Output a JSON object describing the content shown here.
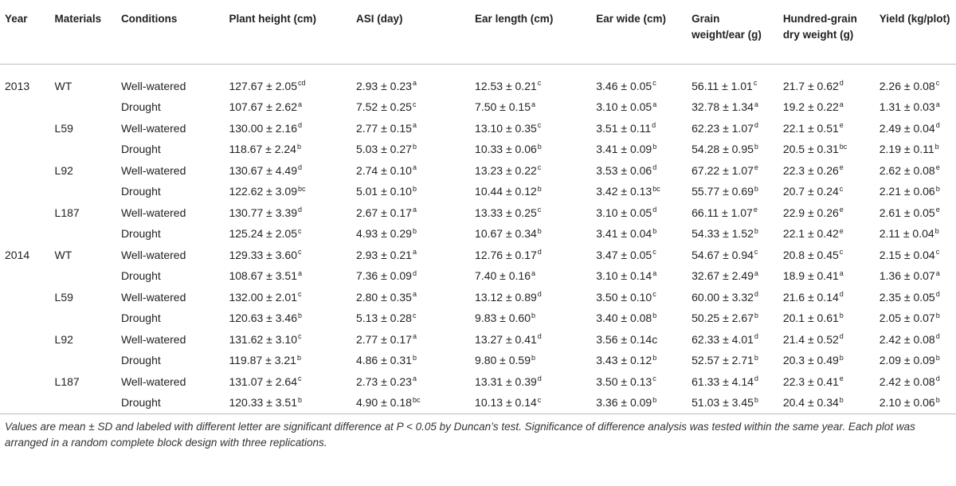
{
  "headers": [
    "Year",
    "Materials",
    "Conditions",
    "Plant height (cm)",
    "ASI (day)",
    "Ear length (cm)",
    "Ear wide (cm)",
    "Grain weight/ear (g)",
    "Hundred-grain dry weight (g)",
    "Yield (kg/plot)"
  ],
  "rows": [
    {
      "year": "2013",
      "material": "WT",
      "condition": "Well-watered",
      "cells": [
        [
          "127.67 ± 2.05",
          "cd"
        ],
        [
          "2.93 ± 0.23",
          "a"
        ],
        [
          "12.53 ± 0.21",
          "c"
        ],
        [
          "3.46 ± 0.05",
          "c"
        ],
        [
          "56.11 ± 1.01",
          "c"
        ],
        [
          "21.7 ± 0.62",
          "d"
        ],
        [
          "2.26 ± 0.08",
          "c"
        ]
      ]
    },
    {
      "year": "",
      "material": "",
      "condition": "Drought",
      "cells": [
        [
          "107.67 ± 2.62",
          "a"
        ],
        [
          "7.52 ± 0.25",
          "c"
        ],
        [
          "7.50 ± 0.15",
          "a"
        ],
        [
          "3.10 ± 0.05",
          "a"
        ],
        [
          "32.78 ± 1.34",
          "a"
        ],
        [
          "19.2 ± 0.22",
          "a"
        ],
        [
          "1.31 ± 0.03",
          "a"
        ]
      ]
    },
    {
      "year": "",
      "material": "L59",
      "condition": "Well-watered",
      "cells": [
        [
          "130.00 ± 2.16",
          "d"
        ],
        [
          "2.77 ± 0.15",
          "a"
        ],
        [
          "13.10 ± 0.35",
          "c"
        ],
        [
          "3.51 ± 0.11",
          "d"
        ],
        [
          "62.23 ± 1.07",
          "d"
        ],
        [
          "22.1 ± 0.51",
          "e"
        ],
        [
          "2.49 ± 0.04",
          "d"
        ]
      ]
    },
    {
      "year": "",
      "material": "",
      "condition": "Drought",
      "cells": [
        [
          "118.67 ± 2.24",
          "b"
        ],
        [
          "5.03 ± 0.27",
          "b"
        ],
        [
          "10.33 ± 0.06",
          "b"
        ],
        [
          "3.41 ± 0.09",
          "b"
        ],
        [
          "54.28 ± 0.95",
          "b"
        ],
        [
          "20.5 ± 0.31",
          "bc"
        ],
        [
          "2.19 ± 0.11",
          "b"
        ]
      ]
    },
    {
      "year": "",
      "material": "L92",
      "condition": "Well-watered",
      "cells": [
        [
          "130.67 ± 4.49",
          "d"
        ],
        [
          "2.74 ± 0.10",
          "a"
        ],
        [
          "13.23 ± 0.22",
          "c"
        ],
        [
          "3.53 ± 0.06",
          "d"
        ],
        [
          "67.22 ± 1.07",
          "e"
        ],
        [
          "22.3 ± 0.26",
          "e"
        ],
        [
          "2.62 ± 0.08",
          "e"
        ]
      ]
    },
    {
      "year": "",
      "material": "",
      "condition": "Drought",
      "cells": [
        [
          "122.62 ± 3.09",
          "bc"
        ],
        [
          "5.01 ± 0.10",
          "b"
        ],
        [
          "10.44 ± 0.12",
          "b"
        ],
        [
          "3.42 ± 0.13",
          "bc"
        ],
        [
          "55.77 ± 0.69",
          "b"
        ],
        [
          "20.7 ± 0.24",
          "c"
        ],
        [
          "2.21 ± 0.06",
          "b"
        ]
      ]
    },
    {
      "year": "",
      "material": "L187",
      "condition": "Well-watered",
      "cells": [
        [
          "130.77 ± 3.39",
          "d"
        ],
        [
          "2.67 ± 0.17",
          "a"
        ],
        [
          "13.33 ± 0.25",
          "c"
        ],
        [
          "3.10 ± 0.05",
          "d"
        ],
        [
          "66.11 ± 1.07",
          "e"
        ],
        [
          "22.9 ± 0.26",
          "e"
        ],
        [
          "2.61 ± 0.05",
          "e"
        ]
      ]
    },
    {
      "year": "",
      "material": "",
      "condition": "Drought",
      "cells": [
        [
          "125.24 ± 2.05",
          "c"
        ],
        [
          "4.93 ± 0.29",
          "b"
        ],
        [
          "10.67 ± 0.34",
          "b"
        ],
        [
          "3.41 ± 0.04",
          "b"
        ],
        [
          "54.33 ± 1.52",
          "b"
        ],
        [
          "22.1 ± 0.42",
          "e"
        ],
        [
          "2.11 ± 0.04",
          "b"
        ]
      ]
    },
    {
      "year": "2014",
      "material": "WT",
      "condition": "Well-watered",
      "cells": [
        [
          "129.33 ± 3.60",
          "c"
        ],
        [
          "2.93 ± 0.21",
          "a"
        ],
        [
          "12.76 ± 0.17",
          "d"
        ],
        [
          "3.47 ± 0.05",
          "c"
        ],
        [
          "54.67 ± 0.94",
          "c"
        ],
        [
          "20.8 ± 0.45",
          "c"
        ],
        [
          "2.15 ± 0.04",
          "c"
        ]
      ]
    },
    {
      "year": "",
      "material": "",
      "condition": "Drought",
      "cells": [
        [
          "108.67 ± 3.51",
          "a"
        ],
        [
          "7.36 ± 0.09",
          "d"
        ],
        [
          "7.40 ± 0.16",
          "a"
        ],
        [
          "3.10 ± 0.14",
          "a"
        ],
        [
          "32.67 ± 2.49",
          "a"
        ],
        [
          "18.9 ± 0.41",
          "a"
        ],
        [
          "1.36 ± 0.07",
          "a"
        ]
      ]
    },
    {
      "year": "",
      "material": "L59",
      "condition": "Well-watered",
      "cells": [
        [
          "132.00 ± 2.01",
          "c"
        ],
        [
          "2.80 ± 0.35",
          "a"
        ],
        [
          "13.12 ± 0.89",
          "d"
        ],
        [
          "3.50 ± 0.10",
          "c"
        ],
        [
          "60.00 ± 3.32",
          "d"
        ],
        [
          "21.6 ± 0.14",
          "d"
        ],
        [
          "2.35 ± 0.05",
          "d"
        ]
      ]
    },
    {
      "year": "",
      "material": "",
      "condition": "Drought",
      "cells": [
        [
          "120.63 ± 3.46",
          "b"
        ],
        [
          "5.13 ± 0.28",
          "c"
        ],
        [
          "9.83 ± 0.60",
          "b"
        ],
        [
          "3.40 ± 0.08",
          "b"
        ],
        [
          "50.25 ± 2.67",
          "b"
        ],
        [
          "20.1 ± 0.61",
          "b"
        ],
        [
          "2.05 ± 0.07",
          "b"
        ]
      ]
    },
    {
      "year": "",
      "material": "L92",
      "condition": "Well-watered",
      "cells": [
        [
          "131.62 ± 3.10",
          "c"
        ],
        [
          "2.77 ± 0.17",
          "a"
        ],
        [
          "13.27 ± 0.41",
          "d"
        ],
        [
          "3.56 ± 0.14c",
          ""
        ],
        [
          "62.33 ± 4.01",
          "d"
        ],
        [
          "21.4 ± 0.52",
          "d"
        ],
        [
          "2.42 ± 0.08",
          "d"
        ]
      ]
    },
    {
      "year": "",
      "material": "",
      "condition": "Drought",
      "cells": [
        [
          "119.87 ± 3.21",
          "b"
        ],
        [
          "4.86 ± 0.31",
          "b"
        ],
        [
          "9.80 ± 0.59",
          "b"
        ],
        [
          "3.43 ± 0.12",
          "b"
        ],
        [
          "52.57 ± 2.71",
          "b"
        ],
        [
          "20.3 ± 0.49",
          "b"
        ],
        [
          "2.09 ± 0.09",
          "b"
        ]
      ]
    },
    {
      "year": "",
      "material": "L187",
      "condition": "Well-watered",
      "cells": [
        [
          "131.07 ± 2.64",
          "c"
        ],
        [
          "2.73 ± 0.23",
          "a"
        ],
        [
          "13.31 ± 0.39",
          "d"
        ],
        [
          "3.50 ± 0.13",
          "c"
        ],
        [
          "61.33 ± 4.14",
          "d"
        ],
        [
          "22.3 ± 0.41",
          "e"
        ],
        [
          "2.42 ± 0.08",
          "d"
        ]
      ]
    },
    {
      "year": "",
      "material": "",
      "condition": "Drought",
      "cells": [
        [
          "120.33 ± 3.51",
          "b"
        ],
        [
          "4.90 ± 0.18",
          "bc"
        ],
        [
          "10.13 ± 0.14",
          "c"
        ],
        [
          "3.36 ± 0.09",
          "b"
        ],
        [
          "51.03 ± 3.45",
          "b"
        ],
        [
          "20.4 ± 0.34",
          "b"
        ],
        [
          "2.10 ± 0.06",
          "b"
        ]
      ]
    }
  ],
  "footnote": "Values are mean ± SD and labeled with different letter are significant difference at P < 0.05 by Duncan’s test. Significance of difference analysis was tested within the same year. Each plot was arranged in a random complete block design with three replications."
}
